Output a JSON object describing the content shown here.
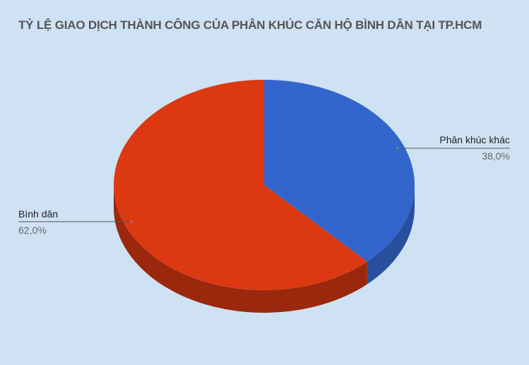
{
  "chart_data": {
    "type": "pie",
    "title": "TỶ LỆ GIAO DỊCH THÀNH CÔNG CỦA PHÂN KHÚC CĂN HỘ BÌNH DÂN TẠI TP.HCM",
    "three_d": true,
    "slices": [
      {
        "label": "Phân khúc khác",
        "value": 38.0,
        "value_label": "38,0%",
        "color": "#3366cc",
        "side_color": "#274f9d"
      },
      {
        "label": "Bình dân",
        "value": 62.0,
        "value_label": "62,0%",
        "color": "#dc3912",
        "side_color": "#9b280c"
      }
    ],
    "legend": "none",
    "background": "#cfe2f3"
  }
}
